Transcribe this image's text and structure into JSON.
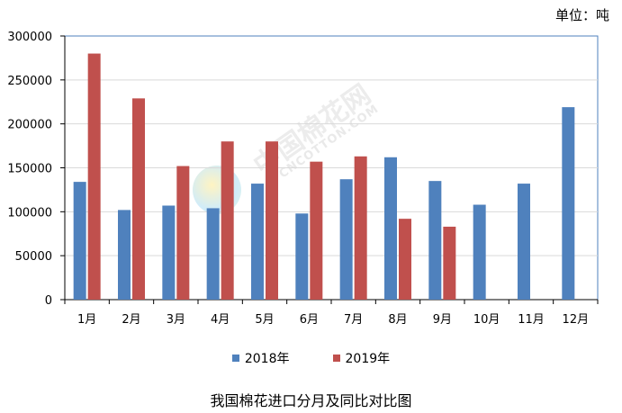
{
  "unit_label": "单位：吨",
  "watermark": {
    "main": "中国棉花网",
    "sub": "CNCOTTON.COM"
  },
  "colors": {
    "s2018": "#4f81bd",
    "s2019": "#c0504d",
    "grid": "#d9d9d9",
    "axis": "#000000",
    "frame": "#4f81bd"
  },
  "chart_data": {
    "type": "bar",
    "title": "我国棉花进口分月及同比对比图",
    "xlabel": "",
    "ylabel": "",
    "ylim": [
      0,
      300000
    ],
    "yticks": [
      0,
      50000,
      100000,
      150000,
      200000,
      250000,
      300000
    ],
    "categories": [
      "1月",
      "2月",
      "3月",
      "4月",
      "5月",
      "6月",
      "7月",
      "8月",
      "9月",
      "10月",
      "11月",
      "12月"
    ],
    "series": [
      {
        "name": "2018年",
        "color": "#4f81bd",
        "values": [
          134000,
          102000,
          107000,
          104000,
          132000,
          98000,
          137000,
          162000,
          135000,
          108000,
          132000,
          219000
        ]
      },
      {
        "name": "2019年",
        "color": "#c0504d",
        "values": [
          280000,
          229000,
          152000,
          180000,
          180000,
          157000,
          163000,
          92000,
          83000,
          null,
          null,
          null
        ]
      }
    ],
    "legend_position": "bottom",
    "grid": true
  }
}
